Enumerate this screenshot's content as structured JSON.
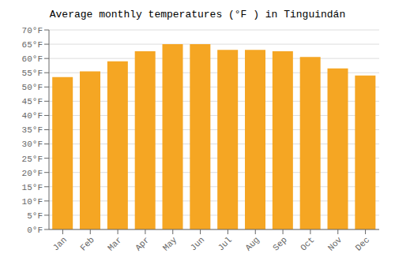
{
  "chart_data": {
    "type": "bar",
    "title": "Average monthly temperatures (°F ) in Tinguindán",
    "categories": [
      "Jan",
      "Feb",
      "Mar",
      "Apr",
      "May",
      "Jun",
      "Jul",
      "Aug",
      "Sep",
      "Oct",
      "Nov",
      "Dec"
    ],
    "values": [
      53.5,
      55.5,
      59,
      62.5,
      65,
      65,
      63,
      63,
      62.5,
      60.5,
      56.5,
      54
    ],
    "color": "#F5A623",
    "ylim": [
      0,
      70
    ],
    "yticks": [
      {
        "value": 0,
        "label": "0°F"
      },
      {
        "value": 5,
        "label": "5°F"
      },
      {
        "value": 10,
        "label": "10°F"
      },
      {
        "value": 15,
        "label": "15°F"
      },
      {
        "value": 20,
        "label": "20°F"
      },
      {
        "value": 25,
        "label": "25°F"
      },
      {
        "value": 30,
        "label": "30°F"
      },
      {
        "value": 35,
        "label": "35°F"
      },
      {
        "value": 40,
        "label": "40°F"
      },
      {
        "value": 45,
        "label": "45°F"
      },
      {
        "value": 50,
        "label": "50°F"
      },
      {
        "value": 55,
        "label": "55°F"
      },
      {
        "value": 60,
        "label": "60°F"
      },
      {
        "value": 65,
        "label": "65°F"
      },
      {
        "value": 70,
        "label": "70°F"
      }
    ],
    "grid": true
  }
}
